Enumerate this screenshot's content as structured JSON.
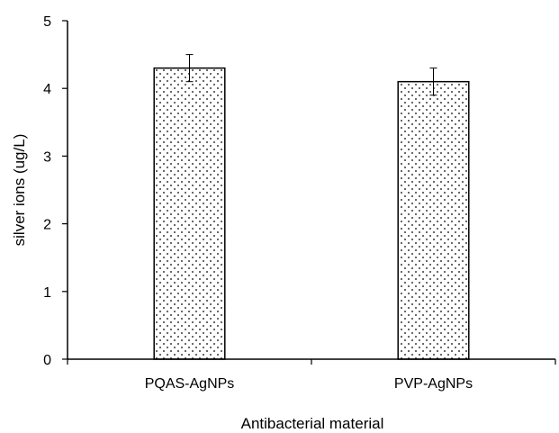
{
  "chart_data": {
    "type": "bar",
    "categories": [
      "PQAS-AgNPs",
      "PVP-AgNPs"
    ],
    "values": [
      4.3,
      4.1
    ],
    "error": [
      0.2,
      0.2
    ],
    "title": "",
    "xlabel": "Antibacterial material",
    "ylabel": "silver ions (ug/L)",
    "ylim": [
      0,
      5
    ],
    "yticks": [
      0,
      1,
      2,
      3,
      4,
      5
    ],
    "ytick_labels": [
      "0",
      "1",
      "2",
      "3",
      "4",
      "5"
    ],
    "grid": false,
    "bar_fill": "dotted",
    "bar_color": "#ffffff",
    "dot_color": "#000000"
  }
}
